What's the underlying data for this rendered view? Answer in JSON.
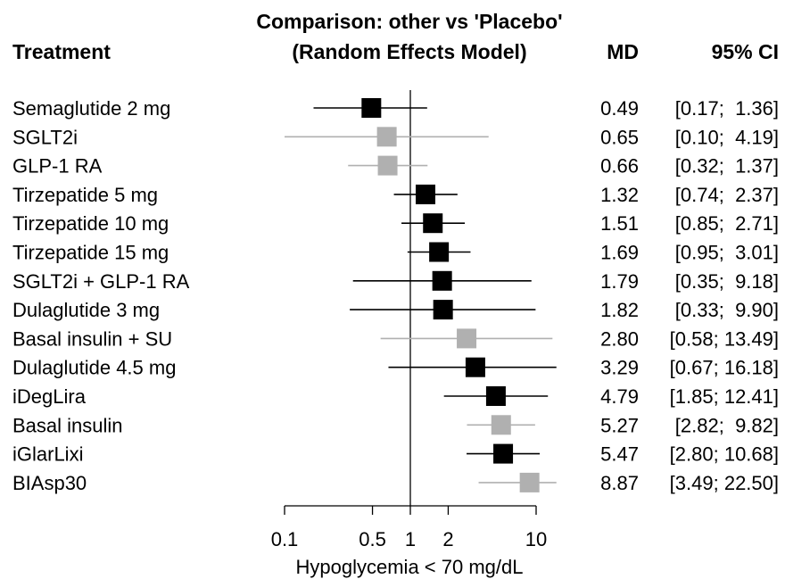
{
  "chart_data": {
    "type": "forest",
    "title_line1": "Comparison: other vs 'Placebo'",
    "title_line2": "(Random Effects Model)",
    "col_treatment": "Treatment",
    "col_md": "MD",
    "col_ci": "95% CI",
    "xlabel": "Hypoglycemia < 70 mg/dL",
    "xscale": "log",
    "xlim": [
      0.1,
      10
    ],
    "reference_line": 1,
    "ticks": [
      {
        "value": 0.1,
        "label": "0.1"
      },
      {
        "value": 0.5,
        "label": "0.5"
      },
      {
        "value": 1,
        "label": "1"
      },
      {
        "value": 2,
        "label": "2"
      },
      {
        "value": 10,
        "label": "10"
      }
    ],
    "colors": {
      "direct": "#000000",
      "indirect": "#b0b0b0",
      "ci_direct": "#000000",
      "ci_indirect": "#b0b0b0"
    },
    "rows": [
      {
        "name": "Semaglutide 2 mg",
        "md": 0.49,
        "lo": 0.17,
        "hi": 1.36,
        "md_text": "0.49",
        "ci_text": "[0.17;  1.36]",
        "style": "direct"
      },
      {
        "name": "SGLT2i",
        "md": 0.65,
        "lo": 0.1,
        "hi": 4.19,
        "md_text": "0.65",
        "ci_text": "[0.10;  4.19]",
        "style": "indirect"
      },
      {
        "name": "GLP-1 RA",
        "md": 0.66,
        "lo": 0.32,
        "hi": 1.37,
        "md_text": "0.66",
        "ci_text": "[0.32;  1.37]",
        "style": "indirect"
      },
      {
        "name": "Tirzepatide 5 mg",
        "md": 1.32,
        "lo": 0.74,
        "hi": 2.37,
        "md_text": "1.32",
        "ci_text": "[0.74;  2.37]",
        "style": "direct"
      },
      {
        "name": "Tirzepatide 10 mg",
        "md": 1.51,
        "lo": 0.85,
        "hi": 2.71,
        "md_text": "1.51",
        "ci_text": "[0.85;  2.71]",
        "style": "direct"
      },
      {
        "name": "Tirzepatide 15 mg",
        "md": 1.69,
        "lo": 0.95,
        "hi": 3.01,
        "md_text": "1.69",
        "ci_text": "[0.95;  3.01]",
        "style": "direct"
      },
      {
        "name": "SGLT2i + GLP-1 RA",
        "md": 1.79,
        "lo": 0.35,
        "hi": 9.18,
        "md_text": "1.79",
        "ci_text": "[0.35;  9.18]",
        "style": "direct"
      },
      {
        "name": "Dulaglutide 3 mg",
        "md": 1.82,
        "lo": 0.33,
        "hi": 9.9,
        "md_text": "1.82",
        "ci_text": "[0.33;  9.90]",
        "style": "direct"
      },
      {
        "name": "Basal insulin + SU",
        "md": 2.8,
        "lo": 0.58,
        "hi": 13.49,
        "md_text": "2.80",
        "ci_text": "[0.58; 13.49]",
        "style": "indirect"
      },
      {
        "name": "Dulaglutide 4.5 mg",
        "md": 3.29,
        "lo": 0.67,
        "hi": 16.18,
        "md_text": "3.29",
        "ci_text": "[0.67; 16.18]",
        "style": "direct"
      },
      {
        "name": "iDegLira",
        "md": 4.79,
        "lo": 1.85,
        "hi": 12.41,
        "md_text": "4.79",
        "ci_text": "[1.85; 12.41]",
        "style": "direct"
      },
      {
        "name": "Basal insulin",
        "md": 5.27,
        "lo": 2.82,
        "hi": 9.82,
        "md_text": "5.27",
        "ci_text": "[2.82;  9.82]",
        "style": "indirect"
      },
      {
        "name": "iGlarLixi",
        "md": 5.47,
        "lo": 2.8,
        "hi": 10.68,
        "md_text": "5.47",
        "ci_text": "[2.80; 10.68]",
        "style": "direct"
      },
      {
        "name": "BIAsp30",
        "md": 8.87,
        "lo": 3.49,
        "hi": 22.5,
        "md_text": "8.87",
        "ci_text": "[3.49; 22.50]",
        "style": "indirect"
      }
    ]
  }
}
